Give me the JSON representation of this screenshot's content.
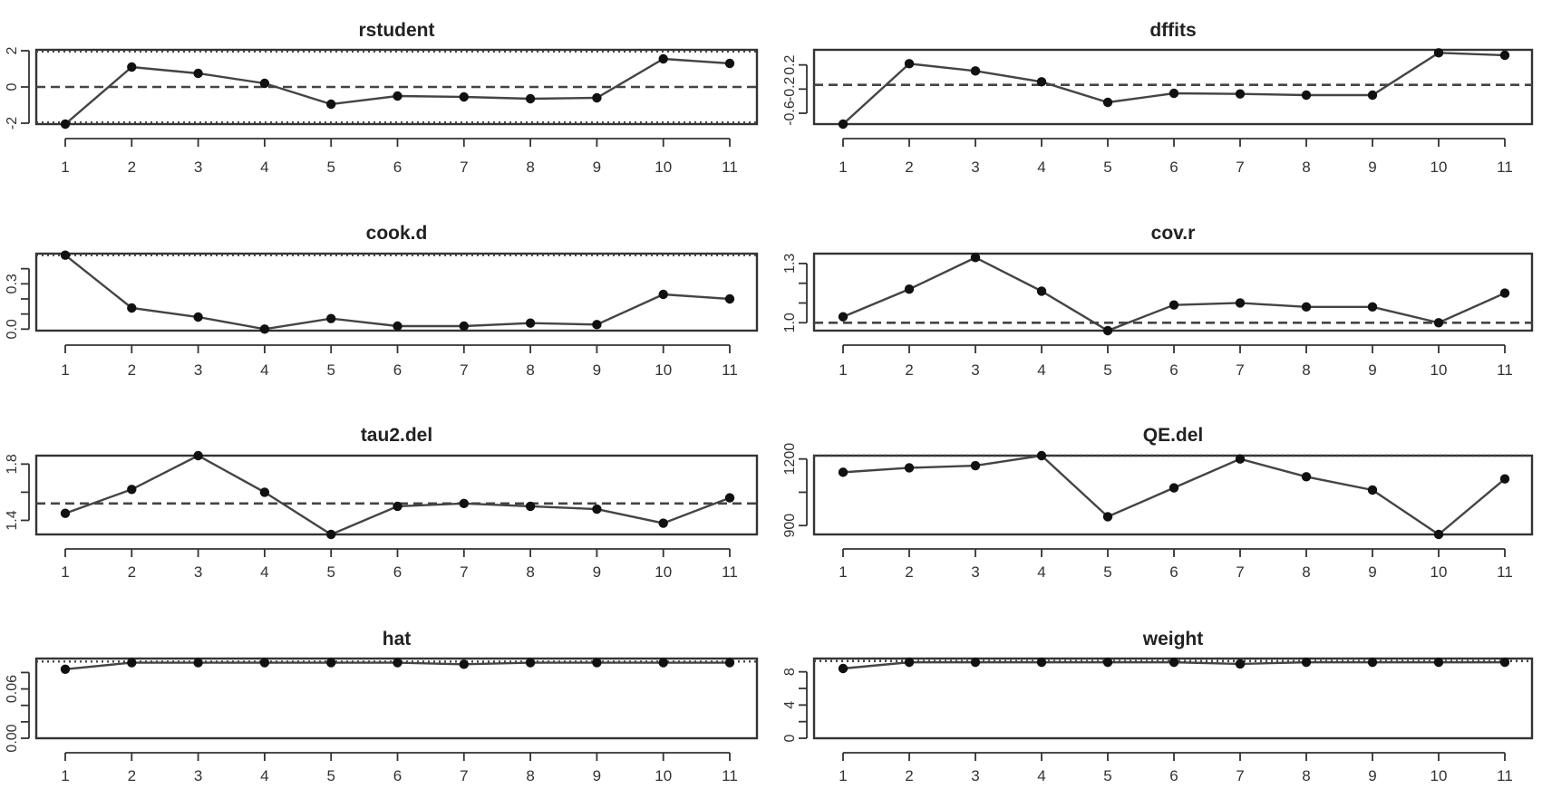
{
  "chart_data": [
    {
      "type": "line",
      "title": "rstudent",
      "x": [
        1,
        2,
        3,
        4,
        5,
        6,
        7,
        8,
        9,
        10,
        11
      ],
      "values": [
        -2.15,
        1.1,
        0.75,
        0.2,
        -0.95,
        -0.5,
        -0.55,
        -0.65,
        -0.6,
        1.55,
        1.3
      ],
      "ylim": [
        -2.05,
        2.05
      ],
      "yticks": [
        -2,
        0,
        2
      ],
      "ytick_labels": [
        "-2",
        "0",
        "2"
      ],
      "ref_dashed": [
        0
      ],
      "ref_dotted": [
        -1.96,
        1.96
      ],
      "grid": false
    },
    {
      "type": "line",
      "title": "dffits",
      "x": [
        1,
        2,
        3,
        4,
        5,
        6,
        7,
        8,
        9,
        10,
        11
      ],
      "values": [
        -0.8,
        0.22,
        0.1,
        -0.08,
        -0.42,
        -0.27,
        -0.28,
        -0.3,
        -0.3,
        0.4,
        0.36
      ],
      "ylim": [
        -0.78,
        0.45
      ],
      "yticks": [
        -0.6,
        -0.2,
        0.2
      ],
      "ytick_labels": [
        "-0.6",
        "-0.2",
        "0.2"
      ],
      "ref_dashed": [
        -0.13
      ],
      "ref_dotted": [],
      "grid": false
    },
    {
      "type": "line",
      "title": "cook.d",
      "x": [
        1,
        2,
        3,
        4,
        5,
        6,
        7,
        8,
        9,
        10,
        11
      ],
      "values": [
        0.49,
        0.14,
        0.08,
        0.0,
        0.07,
        0.02,
        0.02,
        0.04,
        0.03,
        0.23,
        0.2
      ],
      "ylim": [
        -0.01,
        0.5
      ],
      "yticks": [
        0.0,
        0.1,
        0.2,
        0.3,
        0.4
      ],
      "ytick_labels": [
        "0.0",
        "",
        "",
        "0.3",
        ""
      ],
      "ref_dashed": [],
      "ref_dotted": [
        0.49
      ],
      "grid": false
    },
    {
      "type": "line",
      "title": "cov.r",
      "x": [
        1,
        2,
        3,
        4,
        5,
        6,
        7,
        8,
        9,
        10,
        11
      ],
      "values": [
        1.03,
        1.17,
        1.33,
        1.16,
        0.96,
        1.09,
        1.1,
        1.08,
        1.08,
        1.0,
        1.15
      ],
      "ylim": [
        0.96,
        1.35
      ],
      "yticks": [
        1.0,
        1.1,
        1.2,
        1.3
      ],
      "ytick_labels": [
        "1.0",
        "",
        "",
        "1.3"
      ],
      "ref_dashed": [
        1.0
      ],
      "ref_dotted": [],
      "grid": false
    },
    {
      "type": "line",
      "title": "tau2.del",
      "x": [
        1,
        2,
        3,
        4,
        5,
        6,
        7,
        8,
        9,
        10,
        11
      ],
      "values": [
        1.45,
        1.62,
        1.86,
        1.6,
        1.3,
        1.5,
        1.52,
        1.5,
        1.48,
        1.38,
        1.56
      ],
      "ylim": [
        1.3,
        1.86
      ],
      "yticks": [
        1.4,
        1.6,
        1.8
      ],
      "ytick_labels": [
        "1.4",
        "",
        "1.8"
      ],
      "ref_dashed": [
        1.52
      ],
      "ref_dotted": [],
      "grid": false
    },
    {
      "type": "line",
      "title": "QE.del",
      "x": [
        1,
        2,
        3,
        4,
        5,
        6,
        7,
        8,
        9,
        10,
        11
      ],
      "values": [
        1140,
        1160,
        1170,
        1215,
        940,
        1070,
        1200,
        1120,
        1060,
        860,
        1110
      ],
      "ylim": [
        860,
        1215
      ],
      "yticks": [
        900,
        1050,
        1200
      ],
      "ytick_labels": [
        "900",
        "",
        "1200"
      ],
      "ref_dashed": [],
      "ref_dotted": [
        1220
      ],
      "grid": false
    },
    {
      "type": "line",
      "title": "hat",
      "x": [
        1,
        2,
        3,
        4,
        5,
        6,
        7,
        8,
        9,
        10,
        11
      ],
      "values": [
        0.084,
        0.092,
        0.092,
        0.092,
        0.092,
        0.092,
        0.09,
        0.092,
        0.092,
        0.092,
        0.092
      ],
      "ylim": [
        0.0,
        0.097
      ],
      "yticks": [
        0.0,
        0.02,
        0.04,
        0.06,
        0.08
      ],
      "ytick_labels": [
        "0.00",
        "",
        "",
        "0.06",
        ""
      ],
      "ref_dashed": [],
      "ref_dotted": [
        0.0934
      ],
      "grid": false
    },
    {
      "type": "line",
      "title": "weight",
      "x": [
        1,
        2,
        3,
        4,
        5,
        6,
        7,
        8,
        9,
        10,
        11
      ],
      "values": [
        8.4,
        9.15,
        9.15,
        9.15,
        9.15,
        9.15,
        8.95,
        9.15,
        9.15,
        9.15,
        9.15
      ],
      "ylim": [
        0,
        9.6
      ],
      "yticks": [
        0,
        2,
        4,
        6,
        8
      ],
      "ytick_labels": [
        "0",
        "",
        "4",
        "",
        "8"
      ],
      "ref_dashed": [],
      "ref_dotted": [
        9.3
      ],
      "grid": false
    }
  ]
}
